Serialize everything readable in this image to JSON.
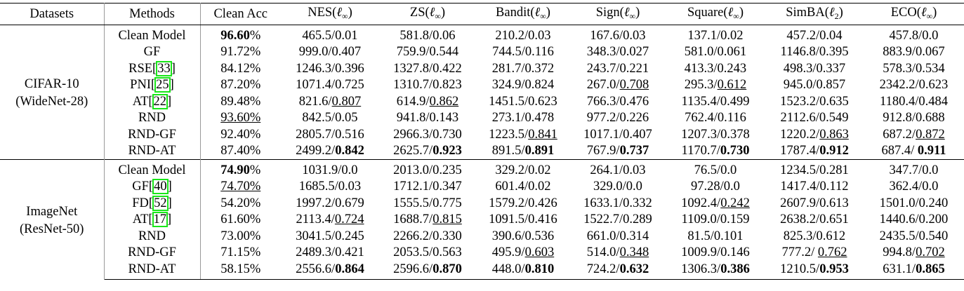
{
  "table": {
    "header": [
      [
        "Datasets"
      ],
      [
        "Methods"
      ],
      [
        "Clean Acc"
      ],
      [
        "NES(",
        {
          "text": "ℓ",
          "style": "math"
        },
        {
          "text": "∞",
          "style": "sub"
        },
        ")"
      ],
      [
        "ZS(",
        {
          "text": "ℓ",
          "style": "math"
        },
        {
          "text": "∞",
          "style": "sub"
        },
        ")"
      ],
      [
        "Bandit(",
        {
          "text": "ℓ",
          "style": "math"
        },
        {
          "text": "∞",
          "style": "sub"
        },
        ")"
      ],
      [
        "Sign(",
        {
          "text": "ℓ",
          "style": "math"
        },
        {
          "text": "∞",
          "style": "sub"
        },
        ")"
      ],
      [
        "Square(",
        {
          "text": "ℓ",
          "style": "math"
        },
        {
          "text": "∞",
          "style": "sub"
        },
        ")"
      ],
      [
        "SimBA(",
        {
          "text": "ℓ",
          "style": "math"
        },
        {
          "text": "2",
          "style": "sub"
        },
        ")"
      ],
      [
        "ECO(",
        {
          "text": "ℓ",
          "style": "math"
        },
        {
          "text": "∞",
          "style": "sub"
        },
        ")"
      ]
    ],
    "groups": [
      {
        "dataset": [
          "CIFAR-10",
          "(WideNet-28)"
        ],
        "rows": [
          [
            [
              "Clean Model"
            ],
            [
              {
                "text": "96.60",
                "style": "bold"
              },
              "%"
            ],
            [
              "465.5/0.01"
            ],
            [
              "581.8/0.06"
            ],
            [
              "210.2/0.03"
            ],
            [
              "167.6/0.03"
            ],
            [
              "137.1/0.02"
            ],
            [
              "457.2/0.04"
            ],
            [
              "457.8/0.0"
            ]
          ],
          [
            [
              "GF"
            ],
            [
              "91.72%"
            ],
            [
              "999.0/0.407"
            ],
            [
              "759.9/0.544"
            ],
            [
              "744.5/0.116"
            ],
            [
              "348.3/0.027"
            ],
            [
              "581.0/0.061"
            ],
            [
              "1146.8/0.395"
            ],
            [
              "883.9/0.067"
            ]
          ],
          [
            [
              "RSE[",
              {
                "text": "33",
                "style": "cite"
              },
              "]"
            ],
            [
              "84.12%"
            ],
            [
              "1246.3/0.396"
            ],
            [
              "1327.8/0.422"
            ],
            [
              "281.7/0.372"
            ],
            [
              "243.7/0.221"
            ],
            [
              "413.3/0.243"
            ],
            [
              "498.3/0.337"
            ],
            [
              "578.3/0.534"
            ]
          ],
          [
            [
              "PNI[",
              {
                "text": "25",
                "style": "cite"
              },
              "]"
            ],
            [
              "87.20%"
            ],
            [
              "1071.4/0.725"
            ],
            [
              "1310.7/0.823"
            ],
            [
              "324.9/0.824"
            ],
            [
              "267.0/",
              {
                "text": "0.708",
                "style": "underline"
              }
            ],
            [
              "295.3/",
              {
                "text": "0.612",
                "style": "underline"
              }
            ],
            [
              "945.0/0.857"
            ],
            [
              "2342.2/0.623"
            ]
          ],
          [
            [
              "AT[",
              {
                "text": "22",
                "style": "cite"
              },
              "]"
            ],
            [
              "89.48%"
            ],
            [
              "821.6/",
              {
                "text": "0.807",
                "style": "underline"
              }
            ],
            [
              "614.9/",
              {
                "text": "0.862",
                "style": "underline"
              }
            ],
            [
              "1451.5/0.623"
            ],
            [
              "766.3/0.476"
            ],
            [
              "1135.4/0.499"
            ],
            [
              "1523.2/0.635"
            ],
            [
              "1180.4/0.484"
            ]
          ],
          [
            [
              "RND"
            ],
            [
              {
                "text": "93.60%",
                "style": "underline"
              }
            ],
            [
              "842.5/0.05"
            ],
            [
              "941.8/0.143"
            ],
            [
              "273.1/0.478"
            ],
            [
              "977.2/0.226"
            ],
            [
              "762.4/0.116"
            ],
            [
              "2112.6/0.549"
            ],
            [
              "912.8/0.688"
            ]
          ],
          [
            [
              "RND-GF"
            ],
            [
              "92.40%"
            ],
            [
              "2805.7/0.516"
            ],
            [
              "2966.3/0.730"
            ],
            [
              "1223.5/",
              {
                "text": "0.841",
                "style": "underline"
              }
            ],
            [
              "1017.1/0.407"
            ],
            [
              "1207.3/0.378"
            ],
            [
              "1220.2/",
              {
                "text": "0.863",
                "style": "underline"
              }
            ],
            [
              "687.2/",
              {
                "text": "0.872",
                "style": "underline"
              }
            ]
          ],
          [
            [
              "RND-AT"
            ],
            [
              "87.40%"
            ],
            [
              "2499.2/",
              {
                "text": "0.842",
                "style": "bold"
              }
            ],
            [
              "2625.7/",
              {
                "text": "0.923",
                "style": "bold"
              }
            ],
            [
              "891.5/",
              {
                "text": "0.891",
                "style": "bold"
              }
            ],
            [
              "767.9/",
              {
                "text": "0.737",
                "style": "bold"
              }
            ],
            [
              "1170.7/",
              {
                "text": "0.730",
                "style": "bold"
              }
            ],
            [
              "1787.4/",
              {
                "text": "0.912",
                "style": "bold"
              }
            ],
            [
              "687.4/ ",
              {
                "text": "0.911",
                "style": "bold"
              }
            ]
          ]
        ]
      },
      {
        "dataset": [
          "ImageNet",
          "(ResNet-50)"
        ],
        "rows": [
          [
            [
              "Clean Model"
            ],
            [
              {
                "text": "74.90",
                "style": "bold"
              },
              "%"
            ],
            [
              "1031.9/0.0"
            ],
            [
              "2013.0/0.235"
            ],
            [
              "329.2/0.02"
            ],
            [
              "264.1/0.03"
            ],
            [
              "76.5/0.0"
            ],
            [
              "1234.5/0.281"
            ],
            [
              "347.7/0.0"
            ]
          ],
          [
            [
              "GF[",
              {
                "text": "40",
                "style": "cite"
              },
              "]"
            ],
            [
              {
                "text": "74.70%",
                "style": "underline"
              }
            ],
            [
              "1685.5/0.03"
            ],
            [
              "1712.1/0.347"
            ],
            [
              "601.4/0.02"
            ],
            [
              "329.0/0.0"
            ],
            [
              "97.28/0.0"
            ],
            [
              "1417.4/0.112"
            ],
            [
              "362.4/0.0"
            ]
          ],
          [
            [
              "FD[",
              {
                "text": "52",
                "style": "cite"
              },
              "]"
            ],
            [
              "54.20%"
            ],
            [
              "1997.2/0.679"
            ],
            [
              "1555.5/0.775"
            ],
            [
              "1579.2/0.426"
            ],
            [
              "1633.1/0.332"
            ],
            [
              "1092.4/",
              {
                "text": "0.242",
                "style": "underline"
              }
            ],
            [
              "2607.9/0.613"
            ],
            [
              "1501.0/0.240"
            ]
          ],
          [
            [
              "AT[",
              {
                "text": "17",
                "style": "cite"
              },
              "]"
            ],
            [
              "61.60%"
            ],
            [
              "2113.4/",
              {
                "text": "0.724",
                "style": "underline"
              }
            ],
            [
              "1688.7/",
              {
                "text": "0.815",
                "style": "underline"
              }
            ],
            [
              "1091.5/0.416"
            ],
            [
              "1522.7/0.289"
            ],
            [
              "1109.0/0.159"
            ],
            [
              "2638.2/0.651"
            ],
            [
              "1440.6/0.200"
            ]
          ],
          [
            [
              "RND"
            ],
            [
              "73.00%"
            ],
            [
              "3041.5/0.245"
            ],
            [
              "2266.2/0.330"
            ],
            [
              "390.6/0.536"
            ],
            [
              "661.0/0.314"
            ],
            [
              "81.5/0.101"
            ],
            [
              "825.3/0.612"
            ],
            [
              "2435.5/0.540"
            ]
          ],
          [
            [
              "RND-GF"
            ],
            [
              "71.15%"
            ],
            [
              "2489.3/0.421"
            ],
            [
              "2053.5/0.563"
            ],
            [
              "495.9/",
              {
                "text": "0.603",
                "style": "underline"
              }
            ],
            [
              "514.0/",
              {
                "text": "0.348",
                "style": "underline"
              }
            ],
            [
              "1009.9/0.146"
            ],
            [
              "777.2/ ",
              {
                "text": "0.762",
                "style": "underline"
              }
            ],
            [
              "994.8/",
              {
                "text": "0.702",
                "style": "underline"
              }
            ]
          ],
          [
            [
              "RND-AT"
            ],
            [
              "58.15%"
            ],
            [
              "2556.6/",
              {
                "text": "0.864",
                "style": "bold"
              }
            ],
            [
              "2596.6/",
              {
                "text": "0.870",
                "style": "bold"
              }
            ],
            [
              "448.0/",
              {
                "text": "0.810",
                "style": "bold"
              }
            ],
            [
              "724.2/",
              {
                "text": "0.632",
                "style": "bold"
              }
            ],
            [
              "1306.3/",
              {
                "text": "0.386",
                "style": "bold"
              }
            ],
            [
              "1210.5/",
              {
                "text": "0.953",
                "style": "bold"
              }
            ],
            [
              "631.1/",
              {
                "text": "0.865",
                "style": "bold"
              }
            ]
          ]
        ]
      }
    ]
  }
}
